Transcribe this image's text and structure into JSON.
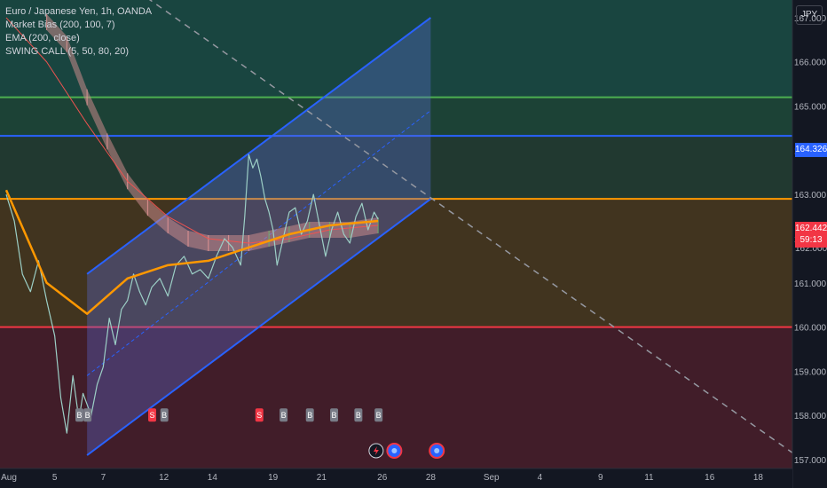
{
  "legend": {
    "symbol": "Euro / Japanese Yen, 1h, OANDA",
    "ind1": "Market Bias (200, 100, 7)",
    "ind2": "EMA (200, close)",
    "ind3": "SWING CALL (5, 50, 80, 20)"
  },
  "currency_badge": "JPY",
  "price_labels": {
    "blue_line": "164.326",
    "last_price": "162.442",
    "countdown": "59:13",
    "hidden_price": "162.000"
  },
  "chart_data": {
    "type": "line",
    "ylim": [
      156.8,
      167.4
    ],
    "yticks": [
      "157.000",
      "158.000",
      "159.000",
      "160.000",
      "161.000",
      "162.000",
      "163.000",
      "164.000",
      "165.000",
      "166.000",
      "167.000"
    ],
    "xticks": [
      {
        "label": "Aug",
        "bar": 0
      },
      {
        "label": "5",
        "bar": 24
      },
      {
        "label": "7",
        "bar": 48
      },
      {
        "label": "12",
        "bar": 78
      },
      {
        "label": "14",
        "bar": 102
      },
      {
        "label": "19",
        "bar": 132
      },
      {
        "label": "21",
        "bar": 156
      },
      {
        "label": "26",
        "bar": 186
      },
      {
        "label": "28",
        "bar": 210
      },
      {
        "label": "Sep",
        "bar": 240
      },
      {
        "label": "4",
        "bar": 264
      },
      {
        "label": "9",
        "bar": 294
      },
      {
        "label": "11",
        "bar": 318
      },
      {
        "label": "16",
        "bar": 348
      },
      {
        "label": "18",
        "bar": 372
      }
    ],
    "horizontal_levels": [
      {
        "price": 167.6,
        "color": "#26a69a"
      },
      {
        "price": 165.2,
        "color": "#4caf50"
      },
      {
        "price": 164.326,
        "color": "#2962ff"
      },
      {
        "price": 162.9,
        "color": "#ff9800"
      },
      {
        "price": 160.0,
        "color": "#f23645"
      }
    ],
    "zones": [
      {
        "from": 167.6,
        "to": 165.2,
        "color": "#1b4d45"
      },
      {
        "from": 165.2,
        "to": 164.326,
        "color": "#1f4a3a"
      },
      {
        "from": 164.326,
        "to": 162.9,
        "color": "#243f33"
      },
      {
        "from": 162.9,
        "to": 160.0,
        "color": "#4a3a1e"
      },
      {
        "from": 160.0,
        "to": 156.8,
        "color": "#4a1f2a"
      }
    ],
    "channel": {
      "x_start": 40,
      "x_end": 210,
      "upper": [
        161.2,
        167.0
      ],
      "mid": [
        158.9,
        164.9
      ],
      "lower": [
        157.1,
        162.9
      ]
    },
    "trendline": {
      "from_bar": 65,
      "from_price": 167.6,
      "to_bar": 400,
      "to_price": 156.8
    },
    "price_series": [
      [
        0,
        163.0
      ],
      [
        4,
        162.4
      ],
      [
        8,
        161.2
      ],
      [
        12,
        160.8
      ],
      [
        16,
        161.5
      ],
      [
        20,
        160.6
      ],
      [
        24,
        159.8
      ],
      [
        27,
        158.4
      ],
      [
        30,
        157.6
      ],
      [
        33,
        158.9
      ],
      [
        36,
        157.9
      ],
      [
        38,
        158.5
      ],
      [
        42,
        158.0
      ],
      [
        45,
        158.7
      ],
      [
        48,
        159.1
      ],
      [
        51,
        160.2
      ],
      [
        54,
        159.6
      ],
      [
        57,
        160.4
      ],
      [
        60,
        160.6
      ],
      [
        63,
        161.2
      ],
      [
        66,
        160.8
      ],
      [
        69,
        160.5
      ],
      [
        72,
        160.9
      ],
      [
        76,
        161.1
      ],
      [
        80,
        160.7
      ],
      [
        84,
        161.4
      ],
      [
        88,
        161.6
      ],
      [
        92,
        161.2
      ],
      [
        96,
        161.3
      ],
      [
        100,
        161.1
      ],
      [
        104,
        161.6
      ],
      [
        108,
        162.0
      ],
      [
        112,
        161.8
      ],
      [
        116,
        161.4
      ],
      [
        118,
        162.5
      ],
      [
        120,
        163.9
      ],
      [
        122,
        163.6
      ],
      [
        124,
        163.8
      ],
      [
        126,
        163.4
      ],
      [
        128,
        162.9
      ],
      [
        130,
        162.6
      ],
      [
        132,
        162.2
      ],
      [
        134,
        161.4
      ],
      [
        136,
        161.8
      ],
      [
        138,
        162.2
      ],
      [
        140,
        162.6
      ],
      [
        143,
        162.7
      ],
      [
        146,
        162.1
      ],
      [
        149,
        162.4
      ],
      [
        152,
        163.0
      ],
      [
        155,
        162.3
      ],
      [
        158,
        161.6
      ],
      [
        161,
        162.2
      ],
      [
        164,
        162.6
      ],
      [
        167,
        162.1
      ],
      [
        170,
        161.9
      ],
      [
        173,
        162.5
      ],
      [
        176,
        162.8
      ],
      [
        179,
        162.2
      ],
      [
        182,
        162.6
      ],
      [
        184,
        162.442
      ]
    ],
    "ema_series": [
      [
        0,
        163.1
      ],
      [
        20,
        161.0
      ],
      [
        40,
        160.3
      ],
      [
        60,
        161.1
      ],
      [
        80,
        161.4
      ],
      [
        100,
        161.5
      ],
      [
        120,
        161.8
      ],
      [
        140,
        162.1
      ],
      [
        160,
        162.3
      ],
      [
        184,
        162.4
      ]
    ],
    "bias_series": [
      [
        0,
        167.0
      ],
      [
        20,
        166.0
      ],
      [
        40,
        164.6
      ],
      [
        60,
        163.3
      ],
      [
        80,
        162.5
      ],
      [
        100,
        162.0
      ],
      [
        120,
        161.9
      ],
      [
        140,
        162.0
      ],
      [
        160,
        162.2
      ],
      [
        184,
        162.3
      ]
    ],
    "market_bias_band": [
      [
        20,
        166.9
      ],
      [
        30,
        166.4
      ],
      [
        40,
        165.2
      ],
      [
        50,
        164.2
      ],
      [
        60,
        163.3
      ],
      [
        70,
        162.7
      ],
      [
        80,
        162.3
      ],
      [
        90,
        162.0
      ],
      [
        100,
        161.9
      ],
      [
        110,
        161.9
      ],
      [
        120,
        161.9
      ],
      [
        130,
        162.0
      ],
      [
        140,
        162.1
      ],
      [
        150,
        162.2
      ],
      [
        160,
        162.2
      ],
      [
        170,
        162.2
      ],
      [
        184,
        162.3
      ]
    ],
    "swing_signals": [
      {
        "bar": 36,
        "label": "B",
        "type": "buy",
        "price": 158.0
      },
      {
        "bar": 40,
        "label": "B",
        "type": "buy",
        "price": 158.0
      },
      {
        "bar": 72,
        "label": "S",
        "type": "sell",
        "price": 158.0
      },
      {
        "bar": 78,
        "label": "B",
        "type": "buy",
        "price": 158.0
      },
      {
        "bar": 125,
        "label": "S",
        "type": "sell",
        "price": 158.0
      },
      {
        "bar": 137,
        "label": "B",
        "type": "buy",
        "price": 158.0
      },
      {
        "bar": 150,
        "label": "B",
        "type": "buy",
        "price": 158.0
      },
      {
        "bar": 162,
        "label": "B",
        "type": "buy",
        "price": 158.0
      },
      {
        "bar": 174,
        "label": "B",
        "type": "buy",
        "price": 158.0
      },
      {
        "bar": 184,
        "label": "B",
        "type": "buy",
        "price": 158.0
      }
    ],
    "event_icons": [
      {
        "bar": 183,
        "kind": "flash"
      },
      {
        "bar": 192,
        "kind": "calendar"
      },
      {
        "bar": 213,
        "kind": "calendar"
      }
    ]
  }
}
